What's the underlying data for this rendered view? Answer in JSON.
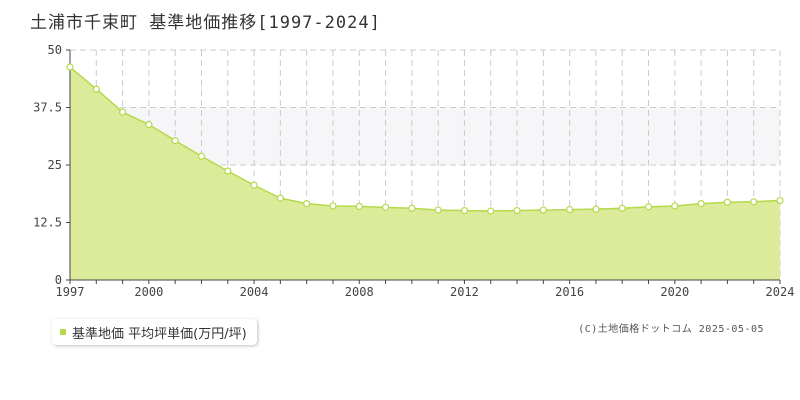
{
  "header": {
    "title": "土浦市千束町 基準地価推移[1997-2024]"
  },
  "legend": {
    "label": "基準地価 平均坪単価(万円/坪)"
  },
  "credit": "(C)土地価格ドットコム 2025-05-05",
  "colors": {
    "fill": "#dceb9a",
    "line": "#b4d94a",
    "point_stroke": "#b4d94a",
    "grid": "#cccccc",
    "band": "#f6f6f9"
  },
  "chart_data": {
    "type": "area",
    "x": [
      1997,
      1998,
      1999,
      2000,
      2001,
      2002,
      2003,
      2004,
      2005,
      2006,
      2007,
      2008,
      2009,
      2010,
      2011,
      2012,
      2013,
      2014,
      2015,
      2016,
      2017,
      2018,
      2019,
      2020,
      2021,
      2022,
      2023,
      2024
    ],
    "series": [
      {
        "name": "基準地価 平均坪単価(万円/坪)",
        "values": [
          46.3,
          41.5,
          36.5,
          33.8,
          30.3,
          26.9,
          23.7,
          20.6,
          17.8,
          16.6,
          16.1,
          16.0,
          15.8,
          15.6,
          15.2,
          15.1,
          15.0,
          15.1,
          15.2,
          15.3,
          15.4,
          15.6,
          15.9,
          16.1,
          16.6,
          16.9,
          17.0,
          17.3
        ]
      }
    ],
    "xticks": [
      {
        "value": 1997,
        "label": "1997"
      },
      {
        "value": 2000,
        "label": "2000"
      },
      {
        "value": 2004,
        "label": "2004"
      },
      {
        "value": 2008,
        "label": "2008"
      },
      {
        "value": 2012,
        "label": "2012"
      },
      {
        "value": 2016,
        "label": "2016"
      },
      {
        "value": 2020,
        "label": "2020"
      },
      {
        "value": 2024,
        "label": "2024"
      }
    ],
    "yticks": [
      {
        "value": 0,
        "label": "0"
      },
      {
        "value": 12.5,
        "label": "12.5"
      },
      {
        "value": 25,
        "label": "25"
      },
      {
        "value": 37.5,
        "label": "37.5"
      },
      {
        "value": 50,
        "label": "50"
      }
    ],
    "xlim": [
      1997,
      2024
    ],
    "ylim": [
      0,
      50
    ],
    "grid": true
  }
}
